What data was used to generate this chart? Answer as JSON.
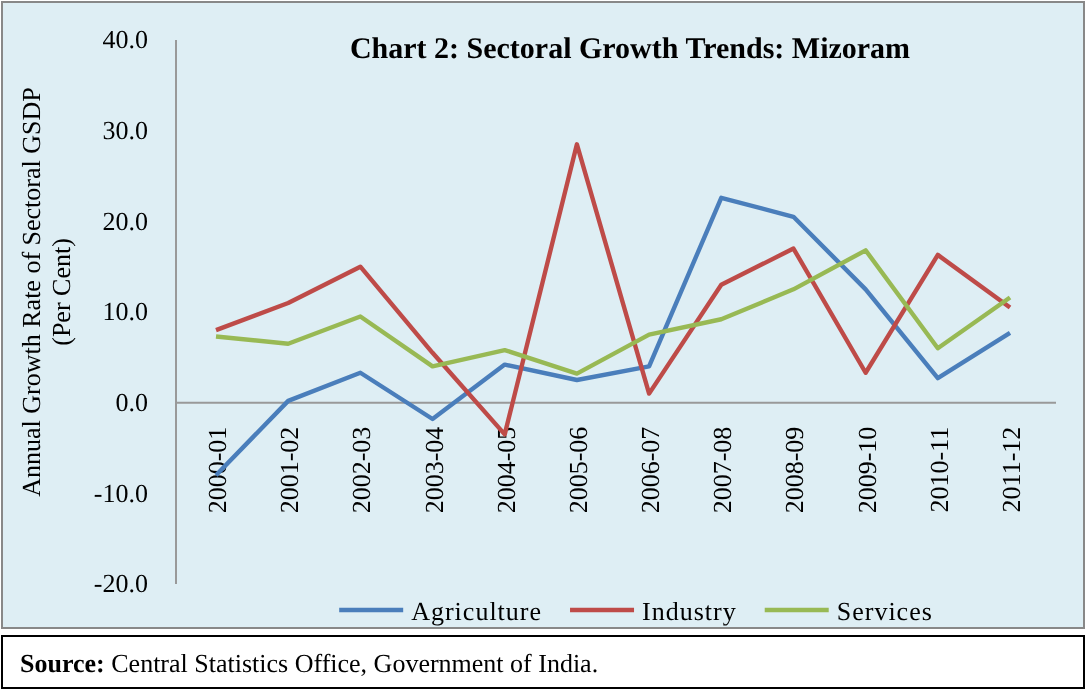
{
  "chart_data": {
    "type": "line",
    "title": "Chart 2: Sectoral Growth Trends: Mizoram",
    "ylabel": "Annual Growth Rate of Sectoral GSDP (Per Cent)",
    "categories": [
      "2000-01",
      "2001-02",
      "2002-03",
      "2003-04",
      "2004-05",
      "2005-06",
      "2006-07",
      "2007-08",
      "2008-09",
      "2009-10",
      "2010-11",
      "2011-12"
    ],
    "series": [
      {
        "name": "Agriculture",
        "color": "#4a7ebb",
        "values": [
          -8.0,
          0.2,
          3.3,
          -1.8,
          4.2,
          2.5,
          4.0,
          22.6,
          20.5,
          12.5,
          2.7,
          7.7
        ]
      },
      {
        "name": "Industry",
        "color": "#be4b48",
        "values": [
          8.0,
          11.0,
          15.0,
          5.5,
          -3.5,
          28.5,
          1.0,
          13.0,
          17.0,
          3.3,
          16.3,
          10.5
        ]
      },
      {
        "name": "Services",
        "color": "#98b954",
        "values": [
          7.3,
          6.5,
          9.5,
          4.0,
          5.8,
          3.2,
          7.5,
          9.2,
          12.5,
          16.8,
          6.0,
          11.6
        ]
      }
    ],
    "ylim": [
      -20,
      40
    ],
    "yticks": [
      {
        "value": -20,
        "label": "-20.0"
      },
      {
        "value": -10,
        "label": "-10.0"
      },
      {
        "value": 0,
        "label": "0.0"
      },
      {
        "value": 10,
        "label": "10.0"
      },
      {
        "value": 20,
        "label": "20.0"
      },
      {
        "value": 30,
        "label": "30.0"
      },
      {
        "value": 40,
        "label": "40.0"
      }
    ],
    "legend": "bottom",
    "grid": false,
    "annotations": [
      "Source: Central Statistics Office, Government of India."
    ]
  }
}
